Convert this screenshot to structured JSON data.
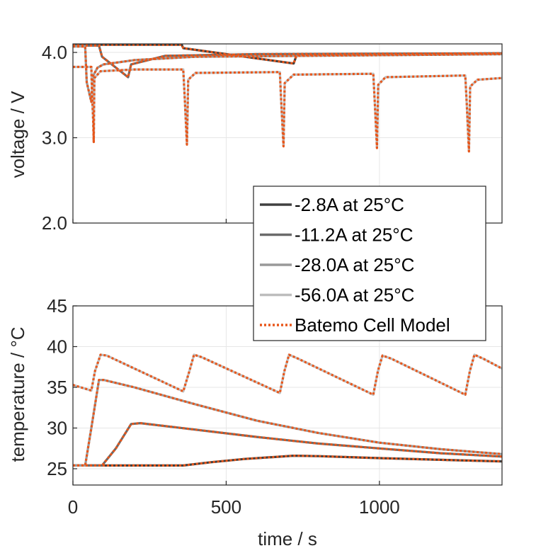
{
  "chart_data": [
    {
      "type": "line",
      "panel": "top",
      "ylabel": "voltage / V",
      "xlabel": "",
      "xlim": [
        0,
        1400
      ],
      "ylim": [
        2.0,
        4.1
      ],
      "xticks": [
        0,
        500,
        1000
      ],
      "xticklabels": [
        "",
        "",
        ""
      ],
      "yticks": [
        2.0,
        3.0,
        4.0
      ],
      "yticklabels": [
        "2.0",
        "3.0",
        "4.0"
      ],
      "grid": true,
      "series": [
        {
          "name": "-2.8A at 25°C",
          "color": "#404040",
          "points": [
            [
              0,
              4.09
            ],
            [
              355,
              4.09
            ],
            [
              360,
              4.05
            ],
            [
              720,
              3.87
            ],
            [
              730,
              3.97
            ],
            [
              1400,
              3.99
            ]
          ]
        },
        {
          "name": "-11.2A at 25°C",
          "color": "#6b6b6b",
          "points": [
            [
              0,
              4.08
            ],
            [
              85,
              4.08
            ],
            [
              95,
              3.95
            ],
            [
              180,
              3.71
            ],
            [
              190,
              3.86
            ],
            [
              300,
              3.96
            ],
            [
              600,
              3.98
            ],
            [
              1400,
              3.99
            ]
          ]
        },
        {
          "name": "-28.0A at 25°C",
          "color": "#999999",
          "points": [
            [
              0,
              4.07
            ],
            [
              40,
              4.07
            ],
            [
              45,
              3.65
            ],
            [
              60,
              3.42
            ],
            [
              65,
              3.72
            ],
            [
              80,
              3.82
            ],
            [
              100,
              3.86
            ],
            [
              200,
              3.91
            ],
            [
              400,
              3.95
            ],
            [
              1400,
              3.98
            ]
          ]
        },
        {
          "name": "-56.0A at 25°C",
          "color": "#bdbdbd",
          "points": [
            [
              0,
              3.83
            ],
            [
              60,
              3.83
            ],
            [
              62,
              3.55
            ],
            [
              66,
              3.2
            ],
            [
              68,
              2.95
            ],
            [
              70,
              3.7
            ],
            [
              90,
              3.78
            ],
            [
              200,
              3.8
            ],
            [
              360,
              3.8
            ],
            [
              365,
              3.45
            ],
            [
              372,
              2.92
            ],
            [
              376,
              3.68
            ],
            [
              400,
              3.76
            ],
            [
              675,
              3.77
            ],
            [
              680,
              3.4
            ],
            [
              687,
              2.9
            ],
            [
              691,
              3.64
            ],
            [
              720,
              3.74
            ],
            [
              980,
              3.75
            ],
            [
              985,
              3.4
            ],
            [
              992,
              2.88
            ],
            [
              996,
              3.62
            ],
            [
              1020,
              3.71
            ],
            [
              1280,
              3.73
            ],
            [
              1285,
              3.4
            ],
            [
              1292,
              2.84
            ],
            [
              1296,
              3.6
            ],
            [
              1320,
              3.68
            ],
            [
              1400,
              3.7
            ]
          ]
        },
        {
          "name": "Batemo Cell Model",
          "color": "#e8561a",
          "style": "dotted",
          "overlay": true
        }
      ]
    },
    {
      "type": "line",
      "panel": "bottom",
      "ylabel": "temperature / °C",
      "xlabel": "time / s",
      "xlim": [
        0,
        1400
      ],
      "ylim": [
        23,
        45
      ],
      "xticks": [
        0,
        500,
        1000
      ],
      "xticklabels": [
        "0",
        "500",
        "1000"
      ],
      "yticks": [
        25,
        30,
        35,
        40,
        45
      ],
      "yticklabels": [
        "25",
        "30",
        "35",
        "40",
        "45"
      ],
      "grid": true,
      "series": [
        {
          "name": "-2.8A at 25°C",
          "color": "#404040",
          "points": [
            [
              0,
              25.4
            ],
            [
              360,
              25.4
            ],
            [
              450,
              25.8
            ],
            [
              560,
              26.2
            ],
            [
              720,
              26.6
            ],
            [
              800,
              26.55
            ],
            [
              1000,
              26.3
            ],
            [
              1200,
              26.1
            ],
            [
              1400,
              25.9
            ]
          ]
        },
        {
          "name": "-11.2A at 25°C",
          "color": "#6b6b6b",
          "points": [
            [
              0,
              25.4
            ],
            [
              95,
              25.4
            ],
            [
              140,
              27.5
            ],
            [
              190,
              30.5
            ],
            [
              220,
              30.6
            ],
            [
              400,
              29.8
            ],
            [
              600,
              28.9
            ],
            [
              800,
              28.1
            ],
            [
              1000,
              27.5
            ],
            [
              1200,
              26.9
            ],
            [
              1400,
              26.5
            ]
          ]
        },
        {
          "name": "-28.0A at 25°C",
          "color": "#999999",
          "points": [
            [
              0,
              25.4
            ],
            [
              40,
              25.4
            ],
            [
              60,
              30
            ],
            [
              85,
              35.9
            ],
            [
              100,
              35.9
            ],
            [
              200,
              35
            ],
            [
              400,
              32.9
            ],
            [
              600,
              30.9
            ],
            [
              800,
              29.4
            ],
            [
              1000,
              28.2
            ],
            [
              1200,
              27.4
            ],
            [
              1400,
              26.8
            ]
          ]
        },
        {
          "name": "-56.0A at 25°C",
          "color": "#bdbdbd",
          "points": [
            [
              0,
              35.3
            ],
            [
              60,
              34.6
            ],
            [
              72,
              37
            ],
            [
              90,
              39
            ],
            [
              110,
              38.9
            ],
            [
              360,
              34.5
            ],
            [
              380,
              37
            ],
            [
              395,
              39
            ],
            [
              420,
              38.7
            ],
            [
              675,
              34.3
            ],
            [
              690,
              37
            ],
            [
              705,
              39
            ],
            [
              730,
              38.6
            ],
            [
              980,
              34.1
            ],
            [
              995,
              37
            ],
            [
              1010,
              38.9
            ],
            [
              1040,
              38.5
            ],
            [
              1280,
              34.1
            ],
            [
              1295,
              37
            ],
            [
              1310,
              39
            ],
            [
              1340,
              38.5
            ],
            [
              1400,
              37.3
            ]
          ]
        },
        {
          "name": "Batemo Cell Model",
          "color": "#e8561a",
          "style": "dotted",
          "overlay": true
        }
      ]
    }
  ],
  "legend": {
    "placement": "top-right of lower panel, overlapping both panels",
    "entries": [
      {
        "label": "-2.8A at 25°C",
        "color": "#404040",
        "style": "solid"
      },
      {
        "label": "-11.2A at 25°C",
        "color": "#6b6b6b",
        "style": "solid"
      },
      {
        "label": "-28.0A at 25°C",
        "color": "#999999",
        "style": "solid"
      },
      {
        "label": "-56.0A at 25°C",
        "color": "#bdbdbd",
        "style": "solid"
      },
      {
        "label": "Batemo Cell Model",
        "color": "#e8561a",
        "style": "dotted"
      }
    ]
  }
}
